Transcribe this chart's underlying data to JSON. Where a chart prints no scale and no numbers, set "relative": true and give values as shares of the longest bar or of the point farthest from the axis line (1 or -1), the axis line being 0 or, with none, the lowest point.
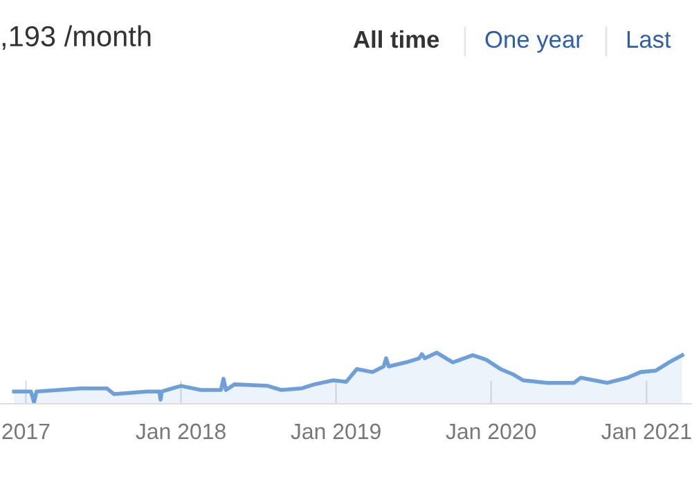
{
  "chart_data": {
    "type": "area",
    "relative": true,
    "title": ",193 /month",
    "annotations": [
      "All time",
      "One year",
      "Last"
    ],
    "x": [
      "2016-12-04",
      "2017-01-13",
      "2017-01-20",
      "2017-01-26",
      "2017-05-10",
      "2017-07-11",
      "2017-07-27",
      "2017-10-14",
      "2017-11-11",
      "2017-11-14",
      "2017-11-17",
      "2018-01-01",
      "2018-02-17",
      "2018-04-05",
      "2018-04-11",
      "2018-04-17",
      "2018-05-07",
      "2018-07-24",
      "2018-08-25",
      "2018-10-11",
      "2018-11-11",
      "2018-12-26",
      "2019-01-25",
      "2019-02-19",
      "2019-03-28",
      "2019-04-23",
      "2019-04-29",
      "2019-05-05",
      "2019-06-15",
      "2019-07-16",
      "2019-07-22",
      "2019-07-29",
      "2019-08-26",
      "2019-10-03",
      "2019-11-19",
      "2019-12-21",
      "2020-01-23",
      "2020-02-23",
      "2020-03-16",
      "2020-05-12",
      "2020-07-14",
      "2020-07-30",
      "2020-10-01",
      "2020-11-17",
      "2020-12-18",
      "2021-01-23",
      "2021-02-23",
      "2021-03-26"
    ],
    "series": [
      {
        "color": "#6e9fd9",
        "values": [
          0.24,
          0.24,
          0.03,
          0.24,
          0.3,
          0.3,
          0.19,
          0.24,
          0.24,
          0.08,
          0.24,
          0.35,
          0.27,
          0.27,
          0.49,
          0.27,
          0.38,
          0.35,
          0.27,
          0.3,
          0.38,
          0.46,
          0.43,
          0.68,
          0.62,
          0.73,
          0.89,
          0.73,
          0.81,
          0.89,
          0.97,
          0.89,
          1,
          0.81,
          0.95,
          0.86,
          0.68,
          0.57,
          0.46,
          0.41,
          0.41,
          0.51,
          0.41,
          0.51,
          0.62,
          0.65,
          0.81,
          0.95
        ]
      }
    ],
    "xlim": [
      "2016-11-01",
      "2021-04-18"
    ],
    "xticks": [
      {
        "value": "2017-01",
        "label": "2017"
      },
      {
        "value": "2018-01",
        "label": "Jan 2018"
      },
      {
        "value": "2019-01",
        "label": "Jan 2019"
      },
      {
        "value": "2020-01",
        "label": "Jan 2020"
      },
      {
        "value": "2021-01",
        "label": "Jan 2021"
      }
    ],
    "tick_labels": "x"
  }
}
